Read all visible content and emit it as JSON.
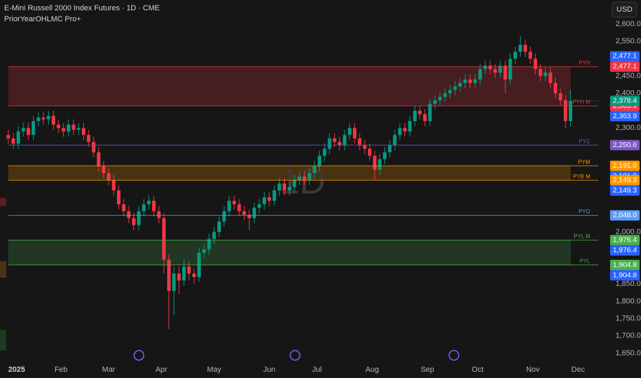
{
  "chart_data": {
    "type": "candlestick",
    "title": "E-Mini Russell 2000 Index Futures · 1D · CME",
    "subtitle": "PriorYearOHLMC Pro+",
    "watermark": "1D",
    "currency": "USD",
    "up_color": "#089981",
    "down_color": "#f23645",
    "xlim": [
      -3.3,
      235.1
    ],
    "ylim": [
      1650,
      2600
    ],
    "xticks": [
      {
        "value": 0,
        "label": "2025"
      },
      {
        "value": 21,
        "label": "Feb"
      },
      {
        "value": 40,
        "label": "Mar"
      },
      {
        "value": 61,
        "label": "Apr"
      },
      {
        "value": 82,
        "label": "May"
      },
      {
        "value": 104,
        "label": "Jun"
      },
      {
        "value": 123,
        "label": "Jul"
      },
      {
        "value": 145,
        "label": "Aug"
      },
      {
        "value": 167,
        "label": "Sep"
      },
      {
        "value": 187,
        "label": "Oct"
      },
      {
        "value": 209,
        "label": "Nov"
      },
      {
        "value": 227,
        "label": "Dec"
      }
    ],
    "yticks": [
      {
        "value": 2600,
        "label": "2,600.0"
      },
      {
        "value": 2550,
        "label": "2,550.0"
      },
      {
        "value": 2450,
        "label": "2,450.0"
      },
      {
        "value": 2400,
        "label": "2,400.0"
      },
      {
        "value": 2300,
        "label": "2,300.0"
      },
      {
        "value": 2000,
        "label": "2,000.0"
      },
      {
        "value": 1850,
        "label": "1,850.0"
      },
      {
        "value": 1800,
        "label": "1,800.0"
      },
      {
        "value": 1750,
        "label": "1,750.0"
      },
      {
        "value": 1700,
        "label": "1,700.0"
      },
      {
        "value": 1650,
        "label": "1,650.0"
      }
    ],
    "x": [
      0,
      2,
      4,
      6,
      8,
      10,
      12,
      14,
      16,
      18,
      20,
      22,
      24,
      26,
      28,
      30,
      32,
      34,
      36,
      38,
      40,
      42,
      44,
      46,
      48,
      50,
      52,
      54,
      56,
      58,
      60,
      62,
      64,
      66,
      68,
      70,
      72,
      74,
      76,
      78,
      80,
      82,
      84,
      86,
      88,
      90,
      92,
      94,
      96,
      98,
      100,
      102,
      104,
      106,
      108,
      110,
      112,
      114,
      116,
      118,
      120,
      122,
      124,
      126,
      128,
      130,
      132,
      134,
      136,
      138,
      140,
      142,
      144,
      146,
      148,
      150,
      152,
      154,
      156,
      158,
      160,
      162,
      164,
      166,
      168,
      170,
      172,
      174,
      176,
      178,
      180,
      182,
      184,
      186,
      188,
      190,
      192,
      194,
      196,
      198,
      200,
      202,
      204,
      206,
      208,
      210,
      212,
      214,
      216,
      218,
      220,
      222,
      224
    ],
    "open": [
      2280,
      2270,
      2255,
      2290,
      2300,
      2280,
      2320,
      2330,
      2325,
      2335,
      2310,
      2300,
      2290,
      2310,
      2295,
      2300,
      2280,
      2260,
      2230,
      2190,
      2170,
      2150,
      2120,
      2080,
      2060,
      2040,
      2020,
      2060,
      2080,
      2090,
      2060,
      2040,
      1920,
      1830,
      1880,
      1860,
      1900,
      1880,
      1870,
      1940,
      1950,
      1980,
      2000,
      2030,
      2060,
      2090,
      2080,
      2060,
      2050,
      2040,
      2070,
      2080,
      2100,
      2090,
      2120,
      2140,
      2120,
      2130,
      2150,
      2160,
      2150,
      2170,
      2190,
      2220,
      2240,
      2270,
      2260,
      2250,
      2280,
      2300,
      2270,
      2250,
      2240,
      2220,
      2180,
      2210,
      2230,
      2250,
      2280,
      2300,
      2290,
      2320,
      2350,
      2340,
      2320,
      2370,
      2380,
      2390,
      2400,
      2410,
      2420,
      2430,
      2440,
      2430,
      2440,
      2470,
      2480,
      2470,
      2460,
      2480,
      2440,
      2500,
      2520,
      2540,
      2520,
      2500,
      2470,
      2450,
      2460,
      2430,
      2400,
      2380,
      2320
    ],
    "high": [
      2295,
      2285,
      2305,
      2315,
      2315,
      2335,
      2345,
      2345,
      2350,
      2350,
      2325,
      2315,
      2325,
      2325,
      2315,
      2315,
      2295,
      2275,
      2245,
      2205,
      2185,
      2165,
      2135,
      2095,
      2075,
      2055,
      2075,
      2095,
      2105,
      2105,
      2075,
      2055,
      1935,
      1900,
      1900,
      1920,
      1915,
      1895,
      1955,
      1965,
      1995,
      2015,
      2045,
      2075,
      2105,
      2105,
      2095,
      2075,
      2065,
      2085,
      2095,
      2115,
      2115,
      2135,
      2155,
      2155,
      2145,
      2165,
      2175,
      2175,
      2185,
      2205,
      2235,
      2255,
      2285,
      2285,
      2275,
      2295,
      2315,
      2315,
      2285,
      2265,
      2255,
      2235,
      2225,
      2245,
      2265,
      2295,
      2315,
      2315,
      2335,
      2365,
      2365,
      2355,
      2385,
      2395,
      2405,
      2415,
      2425,
      2435,
      2445,
      2455,
      2455,
      2455,
      2485,
      2495,
      2495,
      2485,
      2495,
      2495,
      2515,
      2535,
      2565,
      2555,
      2535,
      2515,
      2485,
      2475,
      2475,
      2445,
      2415,
      2395,
      2410
    ],
    "low": [
      2255,
      2240,
      2240,
      2275,
      2265,
      2265,
      2305,
      2310,
      2310,
      2295,
      2285,
      2275,
      2275,
      2280,
      2280,
      2265,
      2245,
      2215,
      2175,
      2155,
      2135,
      2105,
      2065,
      2045,
      2025,
      2005,
      2005,
      2045,
      2065,
      2045,
      2025,
      1880,
      1720,
      1760,
      1820,
      1845,
      1860,
      1850,
      1855,
      1925,
      1935,
      1965,
      1985,
      2015,
      2045,
      2065,
      2045,
      2035,
      2005,
      2025,
      2055,
      2065,
      2075,
      2075,
      2105,
      2105,
      2105,
      2115,
      2135,
      2135,
      2135,
      2155,
      2175,
      2205,
      2225,
      2245,
      2235,
      2235,
      2265,
      2255,
      2235,
      2225,
      2205,
      2150,
      2165,
      2195,
      2215,
      2235,
      2265,
      2275,
      2275,
      2305,
      2325,
      2305,
      2305,
      2355,
      2365,
      2375,
      2385,
      2395,
      2405,
      2415,
      2415,
      2415,
      2425,
      2455,
      2455,
      2445,
      2445,
      2400,
      2425,
      2485,
      2505,
      2505,
      2485,
      2455,
      2435,
      2435,
      2415,
      2385,
      2365,
      2300,
      2305
    ],
    "close": [
      2270,
      2255,
      2290,
      2300,
      2280,
      2320,
      2330,
      2325,
      2335,
      2310,
      2300,
      2290,
      2310,
      2295,
      2300,
      2280,
      2260,
      2230,
      2190,
      2170,
      2150,
      2120,
      2080,
      2060,
      2040,
      2020,
      2060,
      2080,
      2090,
      2060,
      2040,
      1920,
      1830,
      1880,
      1860,
      1900,
      1880,
      1870,
      1940,
      1950,
      1980,
      2000,
      2030,
      2060,
      2090,
      2080,
      2060,
      2050,
      2040,
      2070,
      2080,
      2100,
      2090,
      2120,
      2140,
      2120,
      2130,
      2150,
      2160,
      2150,
      2170,
      2190,
      2220,
      2240,
      2270,
      2260,
      2250,
      2280,
      2300,
      2270,
      2250,
      2240,
      2220,
      2180,
      2210,
      2230,
      2250,
      2280,
      2300,
      2290,
      2320,
      2350,
      2340,
      2320,
      2370,
      2380,
      2390,
      2400,
      2410,
      2420,
      2430,
      2440,
      2430,
      2440,
      2470,
      2480,
      2470,
      2460,
      2480,
      2440,
      2500,
      2520,
      2540,
      2520,
      2500,
      2470,
      2450,
      2460,
      2430,
      2400,
      2380,
      2320,
      2378.4
    ],
    "last_label": "2,378.4",
    "last_color": "#089981",
    "dup_color": "#2962ff",
    "levels": [
      {
        "name": "PYH",
        "value": 2477.1,
        "label": "2,477.1",
        "color": "#f23645"
      },
      {
        "name": "PYH M",
        "value": 2363.9,
        "label": "2,363.9",
        "color": "#f23645"
      },
      {
        "name": "PYC",
        "value": 2250.6,
        "label": "2,250.6",
        "color": "#7e57c2"
      },
      {
        "name": "PYM",
        "value": 2191.0,
        "label": "2,191.0",
        "color": "#ff9800"
      },
      {
        "name": "PYB M",
        "value": 2149.3,
        "label": "2,149.3",
        "color": "#ff9800"
      },
      {
        "name": "PYO",
        "value": 2048.0,
        "label": "2,048.0",
        "color": "#5b9cf6"
      },
      {
        "name": "PYL M",
        "value": 1976.4,
        "label": "1,976.4",
        "color": "#4caf50"
      },
      {
        "name": "PYL",
        "value": 1904.8,
        "label": "1,904.8",
        "color": "#4caf50"
      }
    ]
  }
}
